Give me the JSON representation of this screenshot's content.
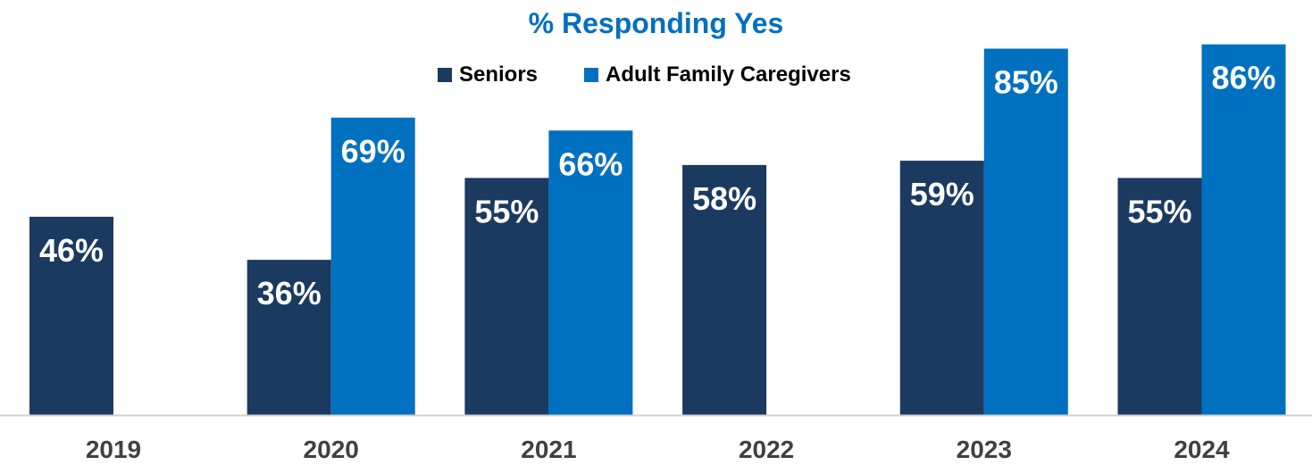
{
  "chart_data": {
    "type": "bar",
    "title": "% Responding Yes",
    "xlabel": "",
    "ylabel": "",
    "categories": [
      "2019",
      "2020",
      "2021",
      "2022",
      "2023",
      "2024"
    ],
    "series": [
      {
        "name": "Seniors",
        "color": "#1a3a60",
        "values": [
          46,
          36,
          55,
          58,
          59,
          55
        ],
        "labels": [
          "46%",
          "36%",
          "55%",
          "58%",
          "59%",
          "55%"
        ]
      },
      {
        "name": "Adult Family Caregivers",
        "color": "#0070c0",
        "values": [
          null,
          69,
          66,
          null,
          85,
          86
        ],
        "labels": [
          null,
          "69%",
          "66%",
          null,
          "85%",
          "86%"
        ]
      }
    ],
    "ylim": [
      0,
      88
    ],
    "grid": false,
    "legend_position": "top-center"
  }
}
